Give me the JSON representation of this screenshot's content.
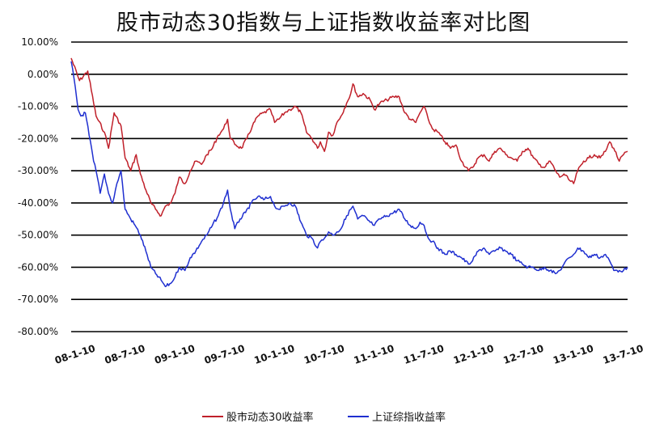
{
  "chart_data": {
    "type": "line",
    "title": "股市动态30指数与上证指数收益率对比图",
    "xlabel": "",
    "ylabel": "",
    "ylim": [
      -80,
      10
    ],
    "yticks": [
      10,
      0,
      -10,
      -20,
      -30,
      -40,
      -50,
      -60,
      -70,
      -80
    ],
    "ytick_labels": [
      "10.00%",
      "0.00%",
      "-10.00%",
      "-20.00%",
      "-30.00%",
      "-40.00%",
      "-50.00%",
      "-60.00%",
      "-70.00%",
      "-80.00%"
    ],
    "x_ticks": [
      "08-1-10",
      "08-7-10",
      "09-1-10",
      "09-7-10",
      "10-1-10",
      "10-7-10",
      "11-1-10",
      "11-7-10",
      "12-1-10",
      "12-7-10",
      "13-1-10",
      "13-7-10"
    ],
    "grid": "horizontal",
    "legend_position": "bottom",
    "series": [
      {
        "name": "股市动态30收益率",
        "color": "#c0202a",
        "points": [
          [
            "08-01-10",
            5
          ],
          [
            "08-02-10",
            -2
          ],
          [
            "08-03-10",
            1
          ],
          [
            "08-04-10",
            -13
          ],
          [
            "08-05-10",
            -18
          ],
          [
            "08-05-25",
            -23
          ],
          [
            "08-06-15",
            -12
          ],
          [
            "08-07-10",
            -16
          ],
          [
            "08-07-25",
            -26
          ],
          [
            "08-08-15",
            -30
          ],
          [
            "08-09-05",
            -25
          ],
          [
            "08-09-20",
            -31
          ],
          [
            "08-10-10",
            -36
          ],
          [
            "08-10-28",
            -40
          ],
          [
            "08-11-15",
            -42
          ],
          [
            "08-12-05",
            -44
          ],
          [
            "08-12-20",
            -41
          ],
          [
            "09-01-10",
            -40
          ],
          [
            "09-01-25",
            -37
          ],
          [
            "09-02-10",
            -32
          ],
          [
            "09-03-01",
            -34
          ],
          [
            "09-03-20",
            -30
          ],
          [
            "09-04-10",
            -27
          ],
          [
            "09-05-01",
            -28
          ],
          [
            "09-05-20",
            -25
          ],
          [
            "09-06-10",
            -23
          ],
          [
            "09-07-01",
            -19
          ],
          [
            "09-07-20",
            -17
          ],
          [
            "09-08-05",
            -14
          ],
          [
            "09-08-15",
            -20
          ],
          [
            "09-09-05",
            -22
          ],
          [
            "09-09-25",
            -23
          ],
          [
            "09-10-15",
            -20
          ],
          [
            "09-11-05",
            -16
          ],
          [
            "09-11-25",
            -13
          ],
          [
            "09-12-15",
            -12
          ],
          [
            "10-01-10",
            -11
          ],
          [
            "10-01-25",
            -15
          ],
          [
            "10-02-10",
            -14
          ],
          [
            "10-03-01",
            -12
          ],
          [
            "10-03-20",
            -11
          ],
          [
            "10-04-10",
            -10
          ],
          [
            "10-04-30",
            -12
          ],
          [
            "10-05-20",
            -18
          ],
          [
            "10-06-10",
            -20
          ],
          [
            "10-06-30",
            -23
          ],
          [
            "10-07-10",
            -21
          ],
          [
            "10-07-25",
            -24
          ],
          [
            "10-08-10",
            -18
          ],
          [
            "10-08-25",
            -19
          ],
          [
            "10-09-10",
            -15
          ],
          [
            "10-09-25",
            -13
          ],
          [
            "10-10-15",
            -9
          ],
          [
            "10-10-30",
            -6
          ],
          [
            "10-11-08",
            -3
          ],
          [
            "10-11-25",
            -7
          ],
          [
            "10-12-15",
            -6
          ],
          [
            "11-01-10",
            -8
          ],
          [
            "11-01-25",
            -11
          ],
          [
            "11-02-15",
            -9
          ],
          [
            "11-03-10",
            -8
          ],
          [
            "11-04-05",
            -7
          ],
          [
            "11-04-25",
            -7
          ],
          [
            "11-05-15",
            -12
          ],
          [
            "11-06-05",
            -14
          ],
          [
            "11-06-25",
            -15
          ],
          [
            "11-07-10",
            -12
          ],
          [
            "11-07-25",
            -10
          ],
          [
            "11-08-10",
            -14
          ],
          [
            "11-08-25",
            -17
          ],
          [
            "11-09-15",
            -18
          ],
          [
            "11-10-10",
            -21
          ],
          [
            "11-10-30",
            -23
          ],
          [
            "11-11-20",
            -22
          ],
          [
            "11-12-10",
            -27
          ],
          [
            "12-01-05",
            -30
          ],
          [
            "12-01-20",
            -29
          ],
          [
            "12-02-10",
            -26
          ],
          [
            "12-03-01",
            -25
          ],
          [
            "12-03-20",
            -27
          ],
          [
            "12-04-10",
            -24
          ],
          [
            "12-05-01",
            -23
          ],
          [
            "12-05-20",
            -25
          ],
          [
            "12-06-10",
            -26
          ],
          [
            "12-07-01",
            -27
          ],
          [
            "12-07-20",
            -24
          ],
          [
            "12-08-10",
            -23
          ],
          [
            "12-08-30",
            -26
          ],
          [
            "12-09-20",
            -28
          ],
          [
            "12-10-10",
            -29
          ],
          [
            "12-10-30",
            -27
          ],
          [
            "12-11-20",
            -30
          ],
          [
            "12-12-05",
            -32
          ],
          [
            "12-12-20",
            -31
          ],
          [
            "13-01-10",
            -33
          ],
          [
            "13-01-25",
            -34
          ],
          [
            "13-02-10",
            -30
          ],
          [
            "13-03-01",
            -27
          ],
          [
            "13-03-20",
            -26
          ],
          [
            "13-04-10",
            -25
          ],
          [
            "13-05-01",
            -26
          ],
          [
            "13-05-20",
            -24
          ],
          [
            "13-06-05",
            -21
          ],
          [
            "13-06-20",
            -23
          ],
          [
            "13-07-10",
            -27
          ],
          [
            "13-07-25",
            -25
          ],
          [
            "13-08-10",
            -24
          ]
        ]
      },
      {
        "name": "上证综指收益率",
        "color": "#1f2fd0",
        "points": [
          [
            "08-01-10",
            4
          ],
          [
            "08-01-25",
            -4
          ],
          [
            "08-02-05",
            -11
          ],
          [
            "08-02-15",
            -13
          ],
          [
            "08-03-01",
            -12
          ],
          [
            "08-03-15",
            -19
          ],
          [
            "08-04-01",
            -27
          ],
          [
            "08-04-10",
            -30
          ],
          [
            "08-04-25",
            -37
          ],
          [
            "08-05-10",
            -31
          ],
          [
            "08-05-25",
            -37
          ],
          [
            "08-06-10",
            -40
          ],
          [
            "08-06-25",
            -34
          ],
          [
            "08-07-10",
            -30
          ],
          [
            "08-07-25",
            -42
          ],
          [
            "08-08-15",
            -45
          ],
          [
            "08-09-01",
            -47
          ],
          [
            "08-09-20",
            -50
          ],
          [
            "08-10-10",
            -55
          ],
          [
            "08-10-28",
            -60
          ],
          [
            "08-11-15",
            -62
          ],
          [
            "08-12-05",
            -64
          ],
          [
            "08-12-20",
            -66
          ],
          [
            "09-01-10",
            -65
          ],
          [
            "09-01-25",
            -63
          ],
          [
            "09-02-10",
            -60
          ],
          [
            "09-03-01",
            -61
          ],
          [
            "09-03-20",
            -57
          ],
          [
            "09-04-10",
            -55
          ],
          [
            "09-05-01",
            -52
          ],
          [
            "09-05-20",
            -50
          ],
          [
            "09-06-10",
            -47
          ],
          [
            "09-07-01",
            -44
          ],
          [
            "09-07-20",
            -40
          ],
          [
            "09-08-05",
            -36
          ],
          [
            "09-08-15",
            -42
          ],
          [
            "09-09-01",
            -48
          ],
          [
            "09-09-20",
            -45
          ],
          [
            "09-10-10",
            -43
          ],
          [
            "09-11-01",
            -40
          ],
          [
            "09-11-25",
            -38
          ],
          [
            "09-12-15",
            -39
          ],
          [
            "10-01-10",
            -38
          ],
          [
            "10-01-25",
            -41
          ],
          [
            "10-02-10",
            -42
          ],
          [
            "10-03-01",
            -41
          ],
          [
            "10-03-20",
            -40
          ],
          [
            "10-04-10",
            -41
          ],
          [
            "10-04-30",
            -46
          ],
          [
            "10-05-20",
            -50
          ],
          [
            "10-06-10",
            -51
          ],
          [
            "10-06-30",
            -54
          ],
          [
            "10-07-10",
            -52
          ],
          [
            "10-07-25",
            -51
          ],
          [
            "10-08-10",
            -49
          ],
          [
            "10-08-25",
            -50
          ],
          [
            "10-09-10",
            -49
          ],
          [
            "10-09-25",
            -48
          ],
          [
            "10-10-15",
            -44
          ],
          [
            "10-10-30",
            -42
          ],
          [
            "10-11-08",
            -41
          ],
          [
            "10-11-25",
            -45
          ],
          [
            "10-12-15",
            -44
          ],
          [
            "11-01-10",
            -46
          ],
          [
            "11-01-25",
            -47
          ],
          [
            "11-02-15",
            -45
          ],
          [
            "11-03-10",
            -44
          ],
          [
            "11-04-05",
            -43
          ],
          [
            "11-04-25",
            -42
          ],
          [
            "11-05-15",
            -45
          ],
          [
            "11-06-05",
            -47
          ],
          [
            "11-06-25",
            -48
          ],
          [
            "11-07-10",
            -46
          ],
          [
            "11-07-25",
            -47
          ],
          [
            "11-08-10",
            -51
          ],
          [
            "11-08-25",
            -52
          ],
          [
            "11-09-15",
            -54
          ],
          [
            "11-10-10",
            -56
          ],
          [
            "11-10-30",
            -55
          ],
          [
            "11-11-20",
            -56
          ],
          [
            "11-12-10",
            -57
          ],
          [
            "12-01-05",
            -59
          ],
          [
            "12-01-20",
            -58
          ],
          [
            "12-02-10",
            -55
          ],
          [
            "12-03-01",
            -54
          ],
          [
            "12-03-20",
            -56
          ],
          [
            "12-04-10",
            -55
          ],
          [
            "12-05-01",
            -54
          ],
          [
            "12-05-20",
            -55
          ],
          [
            "12-06-10",
            -56
          ],
          [
            "12-07-01",
            -58
          ],
          [
            "12-07-20",
            -59
          ],
          [
            "12-08-10",
            -60
          ],
          [
            "12-08-30",
            -60
          ],
          [
            "12-09-20",
            -61
          ],
          [
            "12-10-10",
            -60
          ],
          [
            "12-10-30",
            -61
          ],
          [
            "12-11-20",
            -62
          ],
          [
            "12-12-05",
            -61
          ],
          [
            "12-12-20",
            -59
          ],
          [
            "13-01-10",
            -57
          ],
          [
            "13-01-25",
            -56
          ],
          [
            "13-02-10",
            -54
          ],
          [
            "13-03-01",
            -55
          ],
          [
            "13-03-20",
            -57
          ],
          [
            "13-04-10",
            -56
          ],
          [
            "13-05-01",
            -57
          ],
          [
            "13-05-20",
            -56
          ],
          [
            "13-06-05",
            -58
          ],
          [
            "13-06-20",
            -61
          ],
          [
            "13-07-10",
            -61
          ],
          [
            "13-07-25",
            -61
          ],
          [
            "13-08-10",
            -60
          ]
        ]
      }
    ]
  }
}
